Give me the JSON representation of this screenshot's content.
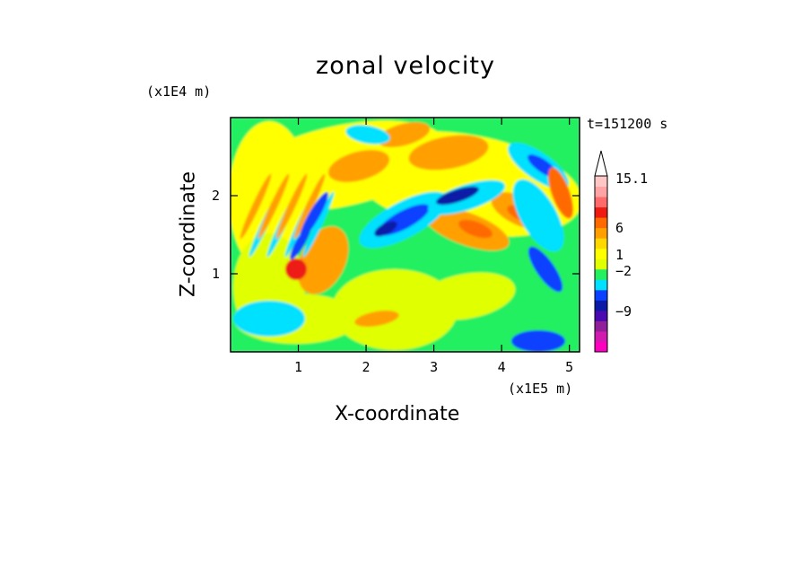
{
  "chart_data": {
    "type": "heatmap",
    "title": "zonal velocity",
    "xlabel": "X-coordinate",
    "ylabel": "Z-coordinate",
    "x_unit": "(x1E5 m)",
    "z_unit": "(x1E4 m)",
    "time_label": "t=151200 s",
    "xlim": [
      0,
      5.15
    ],
    "ylim": [
      0,
      3.0
    ],
    "x_ticks": [
      "1",
      "2",
      "3",
      "4",
      "5"
    ],
    "y_ticks": [
      "1",
      "2"
    ],
    "colorbar": {
      "tick_labels": [
        "15.1",
        "6",
        "1",
        "−2",
        "−9"
      ],
      "extend_max": true,
      "colors": [
        "#ff00c0",
        "#d01ab0",
        "#90209a",
        "#4b0ab0",
        "#0a1aa6",
        "#0a40ff",
        "#00e0ff",
        "#22f060",
        "#e0ff00",
        "#ffff00",
        "#ffd800",
        "#ffa000",
        "#ff6a00",
        "#ee1b12",
        "#ff6a6a",
        "#ffa4a4",
        "#ffc6c6"
      ]
    },
    "field_description_colors": {
      "background": "#22f060",
      "light_yellow": "#e0ff00",
      "yellow": "#ffff00",
      "orange": "#ffa000",
      "dark_orange": "#ff6a00",
      "red": "#ee1b12",
      "cyan": "#00e0ff",
      "blue": "#0a40ff",
      "navy": "#0a1aa6"
    }
  }
}
